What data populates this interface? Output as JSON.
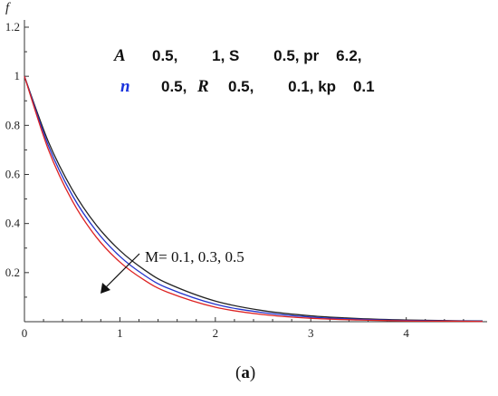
{
  "chart_data": {
    "type": "line",
    "ylabel": "f",
    "xlabel": "",
    "xlim": [
      0,
      4.8
    ],
    "ylim": [
      0,
      1.2
    ],
    "x_ticks": [
      "0",
      "1",
      "2",
      "3",
      "4"
    ],
    "y_ticks": [
      "0.2",
      "0.4",
      "0.6",
      "0.8",
      "1",
      "1.2"
    ],
    "grid": false,
    "x": [
      0,
      0.25,
      0.5,
      0.75,
      1,
      1.25,
      1.5,
      2,
      2.5,
      3,
      3.5,
      4,
      4.5,
      4.8
    ],
    "series": [
      {
        "color": "#222222",
        "values": [
          1,
          0.734,
          0.539,
          0.395,
          0.29,
          0.213,
          0.156,
          0.084,
          0.045,
          0.024,
          0.013,
          0.007,
          0.004,
          0.003
        ]
      },
      {
        "color": "#2233cc",
        "values": [
          1,
          0.718,
          0.516,
          0.371,
          0.266,
          0.191,
          0.137,
          0.071,
          0.037,
          0.019,
          0.01,
          0.005,
          0.003,
          0.002
        ]
      },
      {
        "color": "#dd2222",
        "values": [
          1,
          0.702,
          0.493,
          0.346,
          0.243,
          0.171,
          0.12,
          0.059,
          0.029,
          0.014,
          0.007,
          0.003,
          0.002,
          0.001
        ]
      }
    ],
    "param_line1": {
      "A_symbol": "A",
      "text": "0.5,        1, S        0.5, pr    6.2,"
    },
    "param_line2": {
      "n_symbol": "n",
      "text1": "0.5,",
      "R_symbol": "R",
      "text2": "0.5,        0.1, kp    0.1"
    },
    "annotation": "M= 0.1, 0.3, 0.5",
    "caption": {
      "open": "(",
      "letter": "a",
      "close": ")"
    }
  }
}
